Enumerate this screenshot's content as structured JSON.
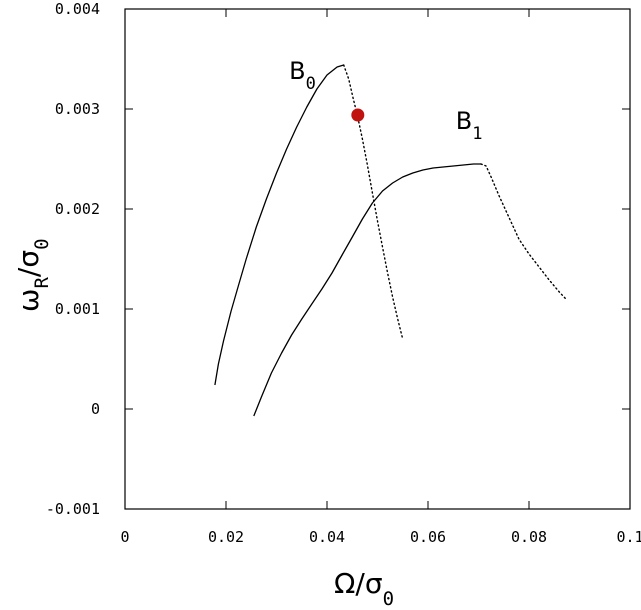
{
  "chart_data": {
    "type": "line",
    "xlabel": {
      "main": "Ω/σ",
      "sub": "0"
    },
    "ylabel": {
      "main": "ω",
      "sub1": "R",
      "mid": "/σ",
      "sub2": "0"
    },
    "xlim": [
      0,
      0.1
    ],
    "ylim": [
      -0.001,
      0.004
    ],
    "xticks": [
      0,
      0.02,
      0.04,
      0.06,
      0.08,
      0.1
    ],
    "xtick_labels": [
      "0",
      "0.02",
      "0.04",
      "0.06",
      "0.08",
      "0.1"
    ],
    "yticks": [
      -0.001,
      0,
      0.001,
      0.002,
      0.003,
      0.004
    ],
    "ytick_labels": [
      "-0.001",
      "0",
      "0.001",
      "0.002",
      "0.003",
      "0.004"
    ],
    "grid": false,
    "series": [
      {
        "name": "B",
        "sub": "0",
        "label_pos": [
          0.0325,
          0.0033
        ],
        "solid": [
          [
            0.0178,
            0.00024
          ],
          [
            0.0185,
            0.00045
          ],
          [
            0.0195,
            0.00068
          ],
          [
            0.021,
            0.00098
          ],
          [
            0.0225,
            0.00124
          ],
          [
            0.024,
            0.0015
          ],
          [
            0.026,
            0.00182
          ],
          [
            0.028,
            0.0021
          ],
          [
            0.03,
            0.00236
          ],
          [
            0.032,
            0.0026
          ],
          [
            0.034,
            0.00282
          ],
          [
            0.036,
            0.00302
          ],
          [
            0.038,
            0.0032
          ],
          [
            0.04,
            0.00334
          ],
          [
            0.042,
            0.00342
          ],
          [
            0.0433,
            0.00344
          ]
        ],
        "dotted": [
          [
            0.0433,
            0.00344
          ],
          [
            0.0443,
            0.0033
          ],
          [
            0.0452,
            0.0031
          ],
          [
            0.046,
            0.00294
          ],
          [
            0.047,
            0.0027
          ],
          [
            0.048,
            0.00244
          ],
          [
            0.049,
            0.00216
          ],
          [
            0.05,
            0.00188
          ],
          [
            0.051,
            0.00162
          ],
          [
            0.052,
            0.00136
          ],
          [
            0.053,
            0.00112
          ],
          [
            0.054,
            0.0009
          ],
          [
            0.0549,
            0.00072
          ]
        ]
      },
      {
        "name": "B",
        "sub": "1",
        "label_pos": [
          0.0655,
          0.0028
        ],
        "solid": [
          [
            0.0255,
            -7e-05
          ],
          [
            0.027,
            0.00012
          ],
          [
            0.029,
            0.00036
          ],
          [
            0.031,
            0.00056
          ],
          [
            0.033,
            0.00074
          ],
          [
            0.035,
            0.0009
          ],
          [
            0.037,
            0.00105
          ],
          [
            0.039,
            0.0012
          ],
          [
            0.041,
            0.00136
          ],
          [
            0.043,
            0.00154
          ],
          [
            0.045,
            0.00172
          ],
          [
            0.047,
            0.0019
          ],
          [
            0.049,
            0.00206
          ],
          [
            0.051,
            0.00218
          ],
          [
            0.053,
            0.00226
          ],
          [
            0.055,
            0.00232
          ],
          [
            0.057,
            0.00236
          ],
          [
            0.059,
            0.00239
          ],
          [
            0.061,
            0.00241
          ],
          [
            0.063,
            0.00242
          ],
          [
            0.065,
            0.00243
          ],
          [
            0.067,
            0.00244
          ],
          [
            0.069,
            0.00245
          ],
          [
            0.0705,
            0.00245
          ]
        ],
        "dotted": [
          [
            0.0705,
            0.00245
          ],
          [
            0.0715,
            0.00243
          ],
          [
            0.0725,
            0.00232
          ],
          [
            0.074,
            0.00214
          ],
          [
            0.076,
            0.00192
          ],
          [
            0.078,
            0.0017
          ],
          [
            0.08,
            0.00155
          ],
          [
            0.082,
            0.00142
          ],
          [
            0.084,
            0.00129
          ],
          [
            0.086,
            0.00117
          ],
          [
            0.0875,
            0.00109
          ]
        ]
      }
    ],
    "highlight_point": {
      "x": 0.0461,
      "y": 0.00294,
      "color": "#c0120f"
    }
  }
}
